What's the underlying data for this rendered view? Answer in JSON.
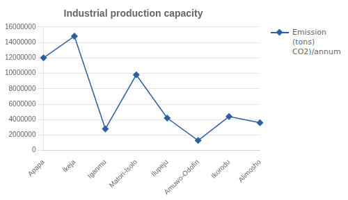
{
  "chart_data": {
    "type": "line",
    "title": "Industrial production capacity",
    "categories": [
      "Apapa",
      "Ikeja",
      "Iganmu",
      "Matori-Isolo",
      "Ilupeju",
      "Amuwo-Odofin",
      "Ikorodu",
      "Alimosho"
    ],
    "series": [
      {
        "name": "Emission (tons)\nCO2)/annum",
        "color": "#2E5FA3",
        "marker": "diamond",
        "values": [
          12000000,
          14800000,
          2800000,
          9800000,
          4200000,
          1300000,
          4400000,
          3600000
        ]
      }
    ],
    "ylim": [
      0,
      16000000
    ],
    "yticks": [
      0,
      2000000,
      4000000,
      6000000,
      8000000,
      10000000,
      12000000,
      14000000,
      16000000
    ],
    "grid": true,
    "legend": "upper right"
  }
}
